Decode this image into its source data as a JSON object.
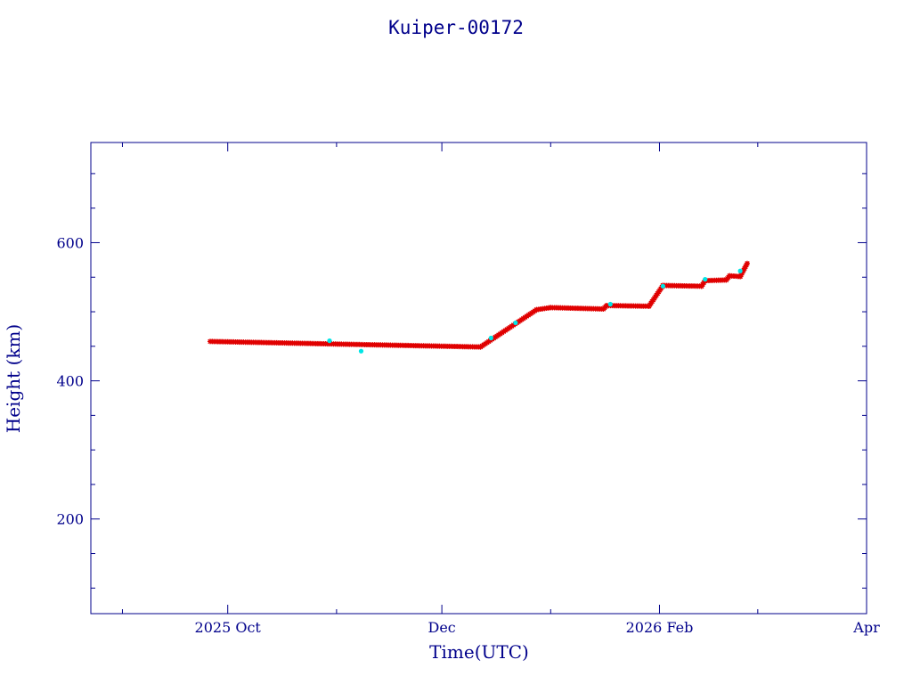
{
  "chart_data": {
    "type": "scatter",
    "title": "Kuiper-00172",
    "xlabel": "Time(UTC)",
    "ylabel": "Height (km)",
    "xlim": [
      "2025-08-23",
      "2026-04-01"
    ],
    "ylim": [
      63,
      745
    ],
    "x_ticks": [
      {
        "date": "2025-10-01",
        "label": "2025 Oct"
      },
      {
        "date": "2025-12-01",
        "label": "Dec"
      },
      {
        "date": "2026-02-01",
        "label": "2026 Feb"
      },
      {
        "date": "2026-04-01",
        "label": "Apr"
      }
    ],
    "x_minor_ticks": [
      "2025-09-01",
      "2025-11-01",
      "2026-01-01",
      "2026-03-01"
    ],
    "y_ticks": [
      200,
      400,
      600
    ],
    "y_minor_step": 50,
    "grid": false,
    "colors": {
      "axes": "#00008b",
      "main": "#e00000",
      "secondary": "#00e5e5"
    },
    "series": [
      {
        "marker": "star",
        "color": "#e00000",
        "segments": [
          {
            "x": [
              "2025-09-26",
              "2025-12-12"
            ],
            "y": [
              457,
              449
            ]
          },
          {
            "x": [
              "2025-12-12",
              "2025-12-28"
            ],
            "y": [
              449,
              503
            ]
          },
          {
            "x": [
              "2025-12-28",
              "2026-01-01"
            ],
            "y": [
              503,
              506
            ]
          },
          {
            "x": [
              "2026-01-01",
              "2026-01-16"
            ],
            "y": [
              506,
              504
            ]
          },
          {
            "x": [
              "2026-01-16",
              "2026-01-17"
            ],
            "y": [
              504,
              509
            ]
          },
          {
            "x": [
              "2026-01-17",
              "2026-01-29"
            ],
            "y": [
              509,
              508
            ]
          },
          {
            "x": [
              "2026-01-29",
              "2026-02-02"
            ],
            "y": [
              508,
              538
            ]
          },
          {
            "x": [
              "2026-02-02",
              "2026-02-13"
            ],
            "y": [
              538,
              537
            ]
          },
          {
            "x": [
              "2026-02-13",
              "2026-02-14"
            ],
            "y": [
              537,
              545
            ]
          },
          {
            "x": [
              "2026-02-14",
              "2026-02-20"
            ],
            "y": [
              545,
              546
            ]
          },
          {
            "x": [
              "2026-02-20",
              "2026-02-21"
            ],
            "y": [
              546,
              552
            ]
          },
          {
            "x": [
              "2026-02-21",
              "2026-02-24"
            ],
            "y": [
              552,
              551
            ]
          },
          {
            "x": [
              "2026-02-24",
              "2026-02-26"
            ],
            "y": [
              551,
              570
            ]
          }
        ]
      },
      {
        "marker": "dot",
        "color": "#00e5e5",
        "points": [
          {
            "x": "2025-10-30",
            "y": 458
          },
          {
            "x": "2025-11-08",
            "y": 443
          },
          {
            "x": "2025-12-15",
            "y": 462
          },
          {
            "x": "2025-12-22",
            "y": 484
          },
          {
            "x": "2026-01-18",
            "y": 511
          },
          {
            "x": "2026-02-02",
            "y": 537
          },
          {
            "x": "2026-02-14",
            "y": 547
          },
          {
            "x": "2026-02-24",
            "y": 559
          }
        ]
      }
    ]
  }
}
